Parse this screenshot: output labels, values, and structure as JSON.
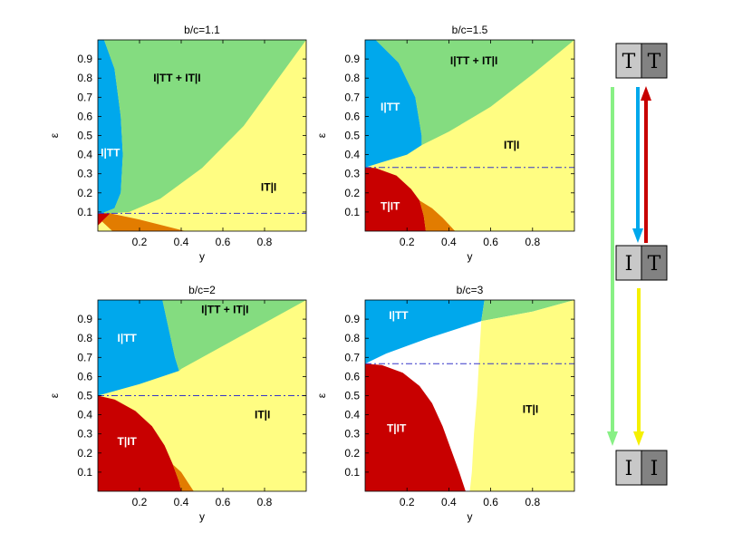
{
  "colors": {
    "blue": "#00a8ec",
    "green": "#84dc80",
    "yellow": "#fffd82",
    "red": "#c80000",
    "orange": "#e27c00",
    "white": "#ffffff",
    "dashline": "#3636c8",
    "box_light": "#c8c8c8",
    "box_dark": "#828282"
  },
  "chart_data": [
    {
      "type": "area",
      "title": "b/c=1.1",
      "xlabel": "y",
      "ylabel": "ε",
      "xlim": [
        0,
        1
      ],
      "ylim": [
        0,
        1
      ],
      "xticks": [
        "0.2",
        "0.4",
        "0.6",
        "0.8"
      ],
      "yticks": [
        "0.1",
        "0.2",
        "0.3",
        "0.4",
        "0.5",
        "0.6",
        "0.7",
        "0.8",
        "0.9"
      ],
      "threshold_epsilon": 0.093,
      "regions": [
        {
          "name": "I|TT",
          "color": "blue",
          "label_pos": [
            0.06,
            0.41
          ],
          "label_color": "#ffffff",
          "points": [
            [
              0,
              1.0
            ],
            [
              0.03,
              1.0
            ],
            [
              0.08,
              0.85
            ],
            [
              0.11,
              0.6
            ],
            [
              0.12,
              0.4
            ],
            [
              0.11,
              0.2
            ],
            [
              0.08,
              0.12
            ],
            [
              0.02,
              0.093
            ],
            [
              0,
              0.093
            ]
          ]
        },
        {
          "name": "I|TT + IT|I",
          "color": "green",
          "label_pos": [
            0.38,
            0.8
          ],
          "label_color": "#000000",
          "points": [
            [
              0.03,
              1.0
            ],
            [
              1.0,
              1.0
            ],
            [
              0.88,
              0.82
            ],
            [
              0.7,
              0.55
            ],
            [
              0.5,
              0.33
            ],
            [
              0.3,
              0.17
            ],
            [
              0.15,
              0.1
            ],
            [
              0.06,
              0.093
            ],
            [
              0.02,
              0.093
            ],
            [
              0.08,
              0.12
            ],
            [
              0.11,
              0.2
            ],
            [
              0.12,
              0.4
            ],
            [
              0.11,
              0.6
            ],
            [
              0.08,
              0.85
            ]
          ]
        },
        {
          "name": "T|IT",
          "color": "red",
          "label_pos": null,
          "label_color": "#ffffff",
          "points": [
            [
              0,
              0.093
            ],
            [
              0.06,
              0.093
            ],
            [
              0.02,
              0.05
            ],
            [
              0,
              0.03
            ]
          ]
        },
        {
          "name": "orange",
          "color": "orange",
          "label_pos": null,
          "label_color": "#000000",
          "points": [
            [
              0.06,
              0.093
            ],
            [
              0.2,
              0.06
            ],
            [
              0.42,
              0.0
            ],
            [
              0.07,
              0.0
            ],
            [
              0.02,
              0.05
            ]
          ]
        },
        {
          "name": "IT|I",
          "color": "yellow",
          "label_pos": [
            0.82,
            0.23
          ],
          "label_color": "#000000",
          "points": []
        }
      ]
    },
    {
      "type": "area",
      "title": "b/c=1.5",
      "xlabel": "y",
      "ylabel": "ε",
      "xlim": [
        0,
        1
      ],
      "ylim": [
        0,
        1
      ],
      "xticks": [
        "0.2",
        "0.4",
        "0.6",
        "0.8"
      ],
      "yticks": [
        "0.1",
        "0.2",
        "0.3",
        "0.4",
        "0.5",
        "0.6",
        "0.7",
        "0.8",
        "0.9"
      ],
      "threshold_epsilon": 0.333,
      "regions": [
        {
          "name": "I|TT",
          "color": "blue",
          "label_pos": [
            0.12,
            0.65
          ],
          "label_color": "#ffffff",
          "points": [
            [
              0,
              1.0
            ],
            [
              0.05,
              1.0
            ],
            [
              0.16,
              0.88
            ],
            [
              0.24,
              0.7
            ],
            [
              0.27,
              0.5
            ],
            [
              0.27,
              0.45
            ],
            [
              0.2,
              0.4
            ],
            [
              0.08,
              0.36
            ],
            [
              0,
              0.333
            ]
          ]
        },
        {
          "name": "I|TT + IT|I",
          "color": "green",
          "label_pos": [
            0.52,
            0.89
          ],
          "label_color": "#000000",
          "points": [
            [
              0.05,
              1.0
            ],
            [
              1.0,
              1.0
            ],
            [
              0.8,
              0.82
            ],
            [
              0.6,
              0.65
            ],
            [
              0.4,
              0.52
            ],
            [
              0.27,
              0.45
            ],
            [
              0.27,
              0.5
            ],
            [
              0.24,
              0.7
            ],
            [
              0.16,
              0.88
            ]
          ]
        },
        {
          "name": "T|IT",
          "color": "red",
          "label_pos": [
            0.12,
            0.13
          ],
          "label_color": "#ffffff",
          "points": [
            [
              0,
              0.333
            ],
            [
              0.05,
              0.33
            ],
            [
              0.15,
              0.29
            ],
            [
              0.22,
              0.22
            ],
            [
              0.26,
              0.16
            ],
            [
              0.28,
              0.08
            ],
            [
              0.29,
              0.0
            ],
            [
              0,
              0.0
            ]
          ]
        },
        {
          "name": "orange",
          "color": "orange",
          "label_pos": null,
          "label_color": "#000000",
          "points": [
            [
              0.26,
              0.16
            ],
            [
              0.32,
              0.12
            ],
            [
              0.37,
              0.07
            ],
            [
              0.43,
              0.0
            ],
            [
              0.29,
              0.0
            ],
            [
              0.28,
              0.08
            ]
          ]
        },
        {
          "name": "IT|I",
          "color": "yellow",
          "label_pos": [
            0.7,
            0.45
          ],
          "label_color": "#000000",
          "points": []
        }
      ]
    },
    {
      "type": "area",
      "title": "b/c=2",
      "xlabel": "y",
      "ylabel": "ε",
      "xlim": [
        0,
        1
      ],
      "ylim": [
        0,
        1
      ],
      "xticks": [
        "0.2",
        "0.4",
        "0.6",
        "0.8"
      ],
      "yticks": [
        "0.1",
        "0.2",
        "0.3",
        "0.4",
        "0.5",
        "0.6",
        "0.7",
        "0.8",
        "0.9"
      ],
      "threshold_epsilon": 0.5,
      "regions": [
        {
          "name": "I|TT",
          "color": "blue",
          "label_pos": [
            0.14,
            0.8
          ],
          "label_color": "#ffffff",
          "points": [
            [
              0,
              1.0
            ],
            [
              0.31,
              1.0
            ],
            [
              0.33,
              0.9
            ],
            [
              0.35,
              0.8
            ],
            [
              0.37,
              0.7
            ],
            [
              0.39,
              0.63
            ],
            [
              0.2,
              0.56
            ],
            [
              0,
              0.5
            ]
          ]
        },
        {
          "name": "I|TT + IT|I",
          "color": "green",
          "label_pos": [
            0.61,
            0.95
          ],
          "label_color": "#000000",
          "points": [
            [
              0.31,
              1.0
            ],
            [
              1.0,
              1.0
            ],
            [
              0.7,
              0.82
            ],
            [
              0.4,
              0.64
            ],
            [
              0.39,
              0.63
            ],
            [
              0.37,
              0.7
            ],
            [
              0.35,
              0.8
            ],
            [
              0.33,
              0.9
            ]
          ]
        },
        {
          "name": "T|IT",
          "color": "red",
          "label_pos": [
            0.14,
            0.26
          ],
          "label_color": "#ffffff",
          "points": [
            [
              0,
              0.5
            ],
            [
              0.08,
              0.48
            ],
            [
              0.18,
              0.42
            ],
            [
              0.26,
              0.34
            ],
            [
              0.32,
              0.24
            ],
            [
              0.36,
              0.14
            ],
            [
              0.39,
              0.05
            ],
            [
              0.4,
              0.0
            ],
            [
              0,
              0.0
            ]
          ]
        },
        {
          "name": "orange",
          "color": "orange",
          "label_pos": null,
          "label_color": "#000000",
          "points": [
            [
              0.36,
              0.14
            ],
            [
              0.4,
              0.1
            ],
            [
              0.43,
              0.05
            ],
            [
              0.46,
              0.0
            ],
            [
              0.4,
              0.0
            ],
            [
              0.39,
              0.05
            ]
          ]
        },
        {
          "name": "IT|I",
          "color": "yellow",
          "label_pos": [
            0.79,
            0.4
          ],
          "label_color": "#000000",
          "points": []
        }
      ]
    },
    {
      "type": "area",
      "title": "b/c=3",
      "xlabel": "y",
      "ylabel": "ε",
      "xlim": [
        0,
        1
      ],
      "ylim": [
        0,
        1
      ],
      "xticks": [
        "0.2",
        "0.4",
        "0.6",
        "0.8"
      ],
      "yticks": [
        "0.1",
        "0.2",
        "0.3",
        "0.4",
        "0.5",
        "0.6",
        "0.7",
        "0.8",
        "0.9"
      ],
      "threshold_epsilon": 0.667,
      "regions": [
        {
          "name": "I|TT",
          "color": "blue",
          "label_pos": [
            0.16,
            0.92
          ],
          "label_color": "#ffffff",
          "points": [
            [
              0,
              1.0
            ],
            [
              0.57,
              1.0
            ],
            [
              0.555,
              0.89
            ],
            [
              0.3,
              0.8
            ],
            [
              0.1,
              0.72
            ],
            [
              0,
              0.667
            ]
          ]
        },
        {
          "name": "I|TT + IT|I",
          "color": "green",
          "label_pos": null,
          "label_color": "#000000",
          "points": [
            [
              0.57,
              1.0
            ],
            [
              1.0,
              1.0
            ],
            [
              0.8,
              0.94
            ],
            [
              0.555,
              0.89
            ]
          ]
        },
        {
          "name": "T|IT",
          "color": "red",
          "label_pos": [
            0.15,
            0.33
          ],
          "label_color": "#ffffff",
          "points": [
            [
              0,
              0.667
            ],
            [
              0.08,
              0.66
            ],
            [
              0.18,
              0.62
            ],
            [
              0.26,
              0.55
            ],
            [
              0.32,
              0.46
            ],
            [
              0.37,
              0.34
            ],
            [
              0.41,
              0.22
            ],
            [
              0.45,
              0.1
            ],
            [
              0.48,
              0.0
            ],
            [
              0,
              0.0
            ]
          ]
        },
        {
          "name": "IT|I",
          "color": "yellow",
          "label_pos": [
            0.79,
            0.43
          ],
          "label_color": "#000000",
          "points": [
            [
              0.555,
              0.89
            ],
            [
              0.8,
              0.94
            ],
            [
              1.0,
              1.0
            ],
            [
              1.0,
              0.0
            ],
            [
              0.5,
              0.0
            ],
            [
              0.51,
              0.1
            ],
            [
              0.52,
              0.3
            ],
            [
              0.535,
              0.5
            ],
            [
              0.545,
              0.7
            ],
            [
              0.555,
              0.89
            ]
          ]
        }
      ]
    }
  ],
  "legend": {
    "states": [
      {
        "name": "TT",
        "left": "T",
        "right": "T"
      },
      {
        "name": "IT",
        "left": "I",
        "right": "T"
      },
      {
        "name": "II",
        "left": "I",
        "right": "I"
      }
    ],
    "arrows": [
      {
        "name": "green",
        "color": "#88f085",
        "from": "TT",
        "to": "II"
      },
      {
        "name": "blue",
        "color": "#00a8ec",
        "from": "TT",
        "to": "IT"
      },
      {
        "name": "red",
        "color": "#c80000",
        "from": "IT",
        "to": "TT"
      },
      {
        "name": "yellow",
        "color": "#f5f000",
        "from": "IT",
        "to": "II"
      }
    ]
  }
}
